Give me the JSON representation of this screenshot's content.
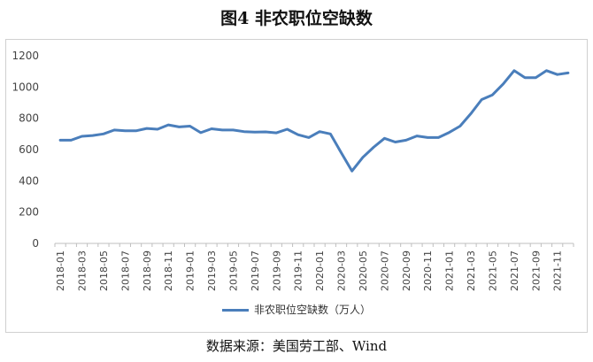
{
  "title": "图4 非农职位空缺数",
  "source": "数据来源：美国劳工部、Wind",
  "chart_data": {
    "type": "line",
    "title": "图4 非农职位空缺数",
    "xlabel": "",
    "ylabel": "",
    "ylim": [
      0,
      1200
    ],
    "yticks": [
      0,
      200,
      400,
      600,
      800,
      1000,
      1200
    ],
    "grid": false,
    "legend_position": "bottom",
    "x": [
      "2018-01",
      "2018-02",
      "2018-03",
      "2018-04",
      "2018-05",
      "2018-06",
      "2018-07",
      "2018-08",
      "2018-09",
      "2018-10",
      "2018-11",
      "2018-12",
      "2019-01",
      "2019-02",
      "2019-03",
      "2019-04",
      "2019-05",
      "2019-06",
      "2019-07",
      "2019-08",
      "2019-09",
      "2019-10",
      "2019-11",
      "2019-12",
      "2020-01",
      "2020-02",
      "2020-03",
      "2020-04",
      "2020-05",
      "2020-06",
      "2020-07",
      "2020-08",
      "2020-09",
      "2020-10",
      "2020-11",
      "2020-12",
      "2021-01",
      "2021-02",
      "2021-03",
      "2021-04",
      "2021-05",
      "2021-06",
      "2021-07",
      "2021-08",
      "2021-09",
      "2021-10",
      "2021-11",
      "2021-12"
    ],
    "xtick_labels": [
      "2018-01",
      "2018-03",
      "2018-05",
      "2018-07",
      "2018-09",
      "2018-11",
      "2019-01",
      "2019-03",
      "2019-05",
      "2019-07",
      "2019-09",
      "2019-11",
      "2020-01",
      "2020-03",
      "2020-05",
      "2020-07",
      "2020-09",
      "2020-11",
      "2021-01",
      "2021-03",
      "2021-05",
      "2021-07",
      "2021-09",
      "2021-11"
    ],
    "series": [
      {
        "name": "非农职位空缺数（万人）",
        "color": "#4a7ebb",
        "values": [
          660,
          660,
          685,
          690,
          700,
          725,
          720,
          720,
          735,
          730,
          758,
          745,
          750,
          708,
          733,
          725,
          725,
          715,
          712,
          713,
          707,
          730,
          695,
          677,
          715,
          700,
          580,
          463,
          550,
          615,
          672,
          648,
          660,
          687,
          677,
          677,
          710,
          750,
          830,
          920,
          950,
          1020,
          1105,
          1060,
          1060,
          1105,
          1080,
          1090
        ]
      }
    ]
  }
}
